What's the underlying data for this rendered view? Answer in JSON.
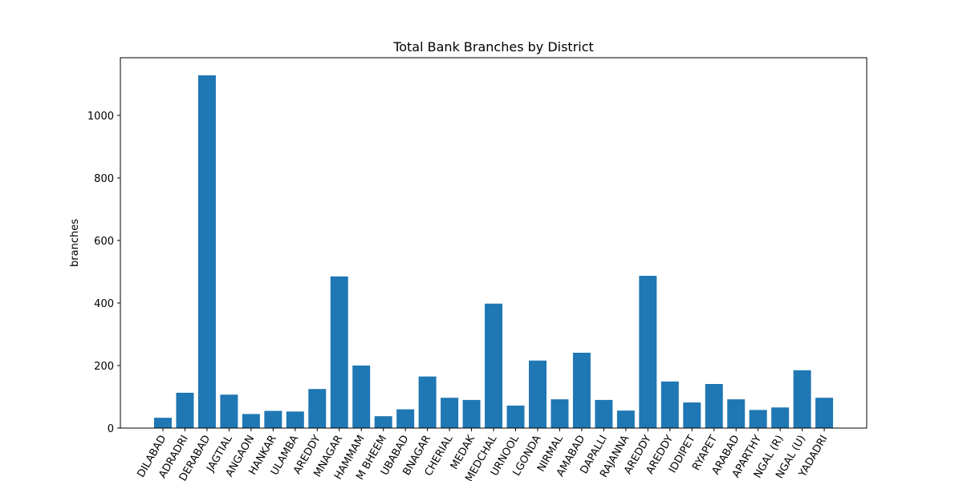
{
  "chart_data": {
    "type": "bar",
    "title": "Total Bank Branches by District",
    "y_label": "branches",
    "categories": [
      "DILABAD",
      "ADRADRI",
      "DERABAD",
      "JAGTIAL",
      "ANGAON",
      "HANKAR",
      "ULAMBA",
      "AREDDY",
      "MNAGAR",
      "HAMMAM",
      "M BHEEM",
      "UBABAD",
      "BNAGAR",
      "CHERIAL",
      "MEDAK",
      "MEDCHAL",
      "URNOOL",
      "LGONDA",
      "NIRMAL",
      "AMABAD",
      "DAPALLI",
      "RAJANNA",
      "AREDDY",
      "AREDDY",
      "IDDIPET",
      "RYAPET",
      "ARABAD",
      "APARTHY",
      "NGAL (R)",
      "NGAL (U)",
      "YADADRI"
    ],
    "values": [
      33,
      113,
      1128,
      107,
      45,
      55,
      53,
      125,
      485,
      200,
      38,
      60,
      165,
      97,
      90,
      398,
      72,
      216,
      92,
      241,
      90,
      56,
      487,
      149,
      82,
      141,
      92,
      58,
      66,
      185,
      97
    ],
    "color": "#1f77b4",
    "ylim": [
      0,
      1184.4
    ],
    "yticks": [
      0,
      200,
      400,
      600,
      800,
      1000
    ],
    "grid": false
  }
}
